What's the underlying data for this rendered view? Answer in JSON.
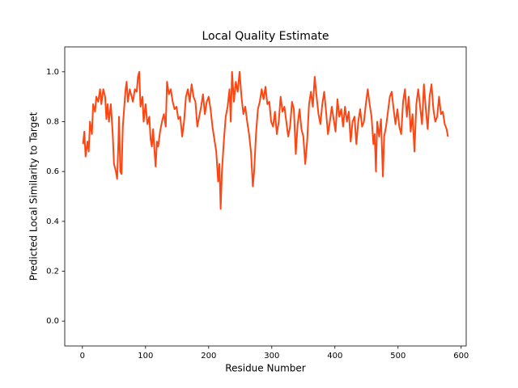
{
  "chart_data": {
    "type": "line",
    "title": "Local Quality Estimate",
    "x_label": "Residue Number",
    "y_label": "Predicted Local Similarity to Target",
    "xlim": [
      -28,
      608
    ],
    "ylim": [
      -0.1,
      1.1
    ],
    "xticks": [
      0,
      100,
      200,
      300,
      400,
      500,
      600
    ],
    "yticks": [
      {
        "value": 0,
        "label": "0.0"
      },
      0.2,
      0.4,
      0.6,
      0.8,
      {
        "value": 1,
        "label": "1.0"
      }
    ],
    "grid": false,
    "series": [
      {
        "color": "#ff4511",
        "x": [
          1,
          3,
          5,
          8,
          10,
          12,
          15,
          17,
          20,
          22,
          25,
          28,
          30,
          33,
          36,
          38,
          40,
          42,
          45,
          48,
          50,
          53,
          55,
          57,
          58,
          60,
          62,
          64,
          66,
          68,
          70,
          72,
          75,
          78,
          80,
          83,
          86,
          88,
          90,
          92,
          95,
          97,
          100,
          103,
          106,
          108,
          110,
          112,
          114,
          116,
          118,
          120,
          123,
          126,
          129,
          132,
          134,
          137,
          140,
          143,
          146,
          149,
          152,
          155,
          158,
          161,
          164,
          167,
          170,
          173,
          176,
          179,
          182,
          185,
          188,
          191,
          194,
          197,
          200,
          203,
          206,
          209,
          212,
          215,
          217,
          219,
          221,
          224,
          227,
          230,
          233,
          235,
          237,
          240,
          243,
          246,
          249,
          252,
          255,
          258,
          261,
          264,
          267,
          270,
          272,
          275,
          278,
          281,
          284,
          287,
          290,
          293,
          296,
          299,
          302,
          305,
          308,
          311,
          314,
          317,
          320,
          323,
          326,
          329,
          332,
          335,
          338,
          341,
          344,
          347,
          350,
          353,
          356,
          359,
          362,
          365,
          368,
          371,
          374,
          377,
          380,
          383,
          386,
          389,
          392,
          395,
          398,
          401,
          404,
          407,
          410,
          413,
          416,
          419,
          422,
          425,
          428,
          431,
          434,
          437,
          440,
          443,
          446,
          449,
          452,
          455,
          458,
          461,
          463,
          465,
          467,
          470,
          473,
          476,
          478,
          481,
          484,
          487,
          490,
          493,
          496,
          499,
          502,
          505,
          508,
          511,
          514,
          517,
          520,
          523,
          526,
          529,
          532,
          535,
          538,
          541,
          544,
          547,
          550,
          553,
          556,
          559,
          562,
          565,
          568,
          571,
          574,
          577,
          579
        ],
        "values": [
          0.71,
          0.76,
          0.66,
          0.72,
          0.68,
          0.8,
          0.75,
          0.87,
          0.84,
          0.9,
          0.88,
          0.93,
          0.87,
          0.93,
          0.9,
          0.81,
          0.87,
          0.8,
          0.87,
          0.75,
          0.63,
          0.6,
          0.57,
          0.72,
          0.82,
          0.6,
          0.59,
          0.78,
          0.85,
          0.92,
          0.96,
          0.88,
          0.93,
          0.9,
          0.88,
          0.93,
          0.92,
          0.98,
          1.0,
          0.86,
          0.9,
          0.8,
          0.87,
          0.79,
          0.82,
          0.73,
          0.7,
          0.77,
          0.69,
          0.62,
          0.72,
          0.7,
          0.76,
          0.8,
          0.83,
          0.78,
          0.96,
          0.91,
          0.93,
          0.88,
          0.85,
          0.86,
          0.81,
          0.82,
          0.74,
          0.8,
          0.9,
          0.93,
          0.88,
          0.95,
          0.9,
          0.88,
          0.78,
          0.82,
          0.86,
          0.91,
          0.83,
          0.88,
          0.9,
          0.85,
          0.78,
          0.73,
          0.68,
          0.56,
          0.63,
          0.45,
          0.6,
          0.72,
          0.82,
          0.86,
          0.93,
          0.8,
          1.0,
          0.88,
          0.96,
          0.92,
          1.0,
          0.9,
          0.83,
          0.86,
          0.8,
          0.75,
          0.68,
          0.54,
          0.6,
          0.75,
          0.85,
          0.88,
          0.93,
          0.89,
          0.94,
          0.87,
          0.88,
          0.8,
          0.78,
          0.84,
          0.75,
          0.8,
          0.9,
          0.84,
          0.86,
          0.8,
          0.74,
          0.78,
          0.88,
          0.85,
          0.67,
          0.79,
          0.85,
          0.77,
          0.74,
          0.63,
          0.72,
          0.87,
          0.92,
          0.86,
          0.98,
          0.9,
          0.83,
          0.79,
          0.87,
          0.92,
          0.84,
          0.75,
          0.8,
          0.86,
          0.81,
          0.76,
          0.89,
          0.82,
          0.85,
          0.78,
          0.86,
          0.8,
          0.84,
          0.72,
          0.8,
          0.82,
          0.71,
          0.8,
          0.85,
          0.78,
          0.8,
          0.87,
          0.93,
          0.87,
          0.82,
          0.71,
          0.75,
          0.6,
          0.8,
          0.74,
          0.81,
          0.58,
          0.74,
          0.78,
          0.84,
          0.9,
          0.92,
          0.85,
          0.79,
          0.85,
          0.78,
          0.75,
          0.88,
          0.93,
          0.82,
          0.9,
          0.76,
          0.83,
          0.68,
          0.87,
          0.93,
          0.86,
          0.79,
          0.95,
          0.85,
          0.77,
          0.9,
          0.95,
          0.85,
          0.8,
          0.82,
          0.9,
          0.83,
          0.84,
          0.79,
          0.77,
          0.74
        ]
      }
    ]
  }
}
